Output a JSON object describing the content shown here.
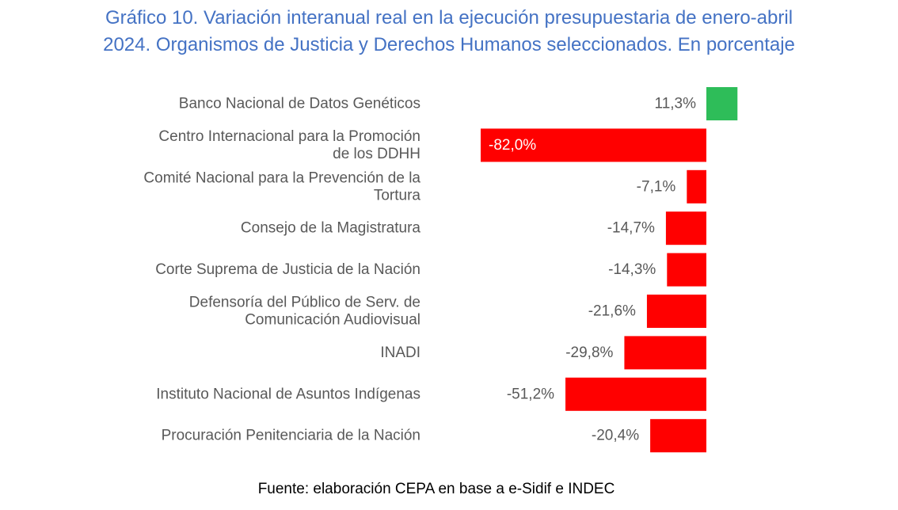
{
  "title_lines": [
    "Gráfico 10. Variación interanual real en la ejecución presupuestaria de enero-abril",
    "2024. Organismos de Justicia y Derechos Humanos seleccionados. En porcentaje"
  ],
  "source": "Fuente: elaboración CEPA en base a e-Sidif e INDEC",
  "colors": {
    "title": "#4472C4",
    "positive": "#2EBD59",
    "negative": "#FF0000",
    "label_text": "#595959",
    "inside_label_text": "#FFFFFF"
  },
  "chart_data": {
    "type": "bar",
    "orientation": "horizontal",
    "unit": "%",
    "grid": false,
    "legend": "none",
    "categories": [
      [
        "Banco Nacional de Datos Genéticos"
      ],
      [
        "Centro Internacional para la Promoción",
        "de los DDHH"
      ],
      [
        "Comité Nacional para la Prevención de la",
        "Tortura"
      ],
      [
        "Consejo de la Magistratura"
      ],
      [
        "Corte Suprema de Justicia de la Nación"
      ],
      [
        "Defensoría del Público de Serv. de",
        "Comunicación Audiovisual"
      ],
      [
        "INADI"
      ],
      [
        "Instituto Nacional de Asuntos Indígenas"
      ],
      [
        "Procuración Penitenciaria de la Nación"
      ]
    ],
    "values": [
      11.3,
      -82.0,
      -7.1,
      -14.7,
      -14.3,
      -21.6,
      -29.8,
      -51.2,
      -20.4
    ],
    "value_labels": [
      "11,3%",
      "-82,0%",
      "-7,1%",
      "-14,7%",
      "-14,3%",
      "-21,6%",
      "-29,8%",
      "-51,2%",
      "-20,4%"
    ],
    "xlim": [
      -82.0,
      11.3
    ]
  }
}
